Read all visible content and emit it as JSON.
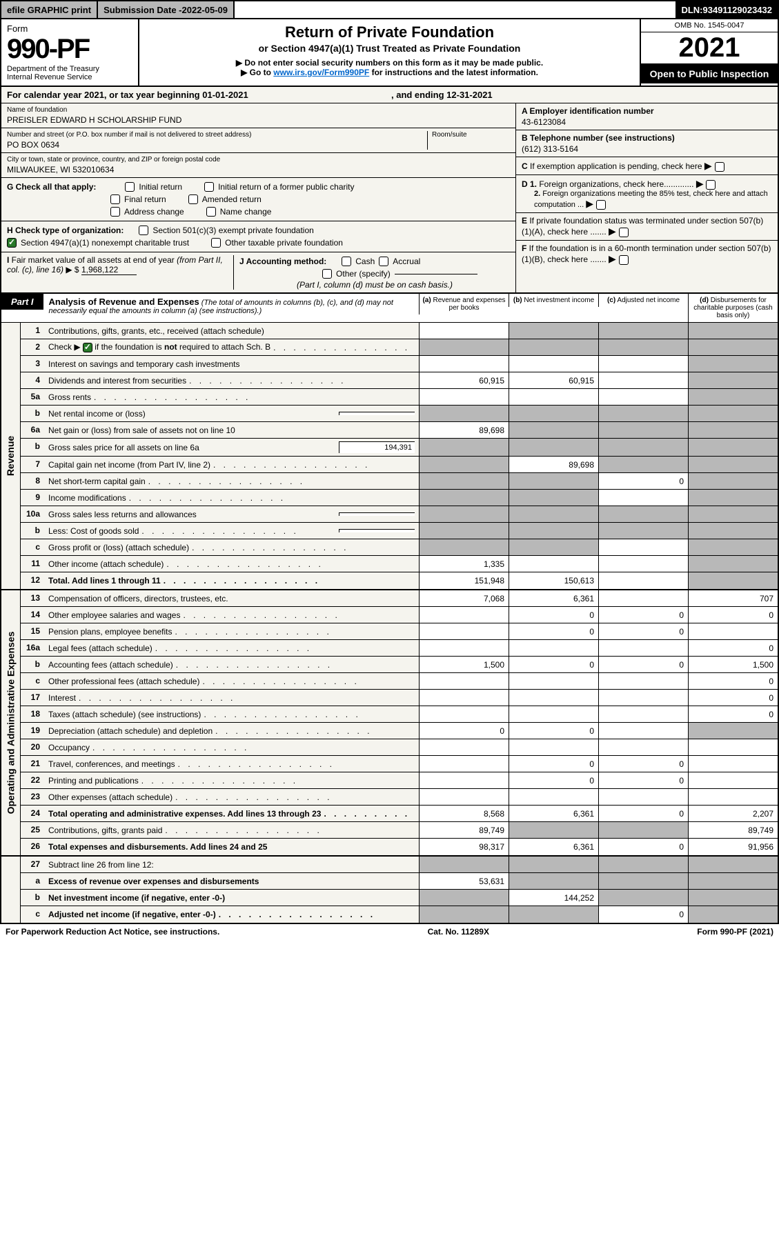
{
  "top_bar": {
    "efile": "efile GRAPHIC print",
    "submission_label": "Submission Date - ",
    "submission_date": "2022-05-09",
    "dln_label": "DLN: ",
    "dln": "93491129023432"
  },
  "header": {
    "form_word": "Form",
    "form_number": "990-PF",
    "dept": "Department of the Treasury",
    "irs": "Internal Revenue Service",
    "title": "Return of Private Foundation",
    "subtitle": "or Section 4947(a)(1) Trust Treated as Private Foundation",
    "instr1": "▶ Do not enter social security numbers on this form as it may be made public.",
    "instr2_pre": "▶ Go to ",
    "instr2_link": "www.irs.gov/Form990PF",
    "instr2_post": " for instructions and the latest information.",
    "omb": "OMB No. 1545-0047",
    "tax_year": "2021",
    "open_public": "Open to Public Inspection"
  },
  "cal_year": {
    "pre": "For calendar year 2021, or tax year beginning ",
    "begin": "01-01-2021",
    "mid": " , and ending ",
    "end": "12-31-2021"
  },
  "info_left": {
    "name_label": "Name of foundation",
    "name": "PREISLER EDWARD H SCHOLARSHIP FUND",
    "addr_label": "Number and street (or P.O. box number if mail is not delivered to street address)",
    "addr": "PO BOX 0634",
    "room_label": "Room/suite",
    "city_label": "City or town, state or province, country, and ZIP or foreign postal code",
    "city": "MILWAUKEE, WI  532010634",
    "g_label": "G Check all that apply:",
    "g_opts": [
      "Initial return",
      "Initial return of a former public charity",
      "Final return",
      "Amended return",
      "Address change",
      "Name change"
    ],
    "h_label": "H Check type of organization:",
    "h_501c3": "Section 501(c)(3) exempt private foundation",
    "h_4947": "Section 4947(a)(1) nonexempt charitable trust",
    "h_other_tax": "Other taxable private foundation",
    "i_label": "I Fair market value of all assets at end of year (from Part II, col. (c), line 16) ▶ $ ",
    "i_value": "1,968,122",
    "j_label": "J Accounting method:",
    "j_cash": "Cash",
    "j_accrual": "Accrual",
    "j_other": "Other (specify)",
    "j_note": "(Part I, column (d) must be on cash basis.)"
  },
  "info_right": {
    "a_label": "A Employer identification number",
    "a_value": "43-6123084",
    "b_label": "B Telephone number (see instructions)",
    "b_value": "(612) 313-5164",
    "c_label": "C If exemption application is pending, check here",
    "d1_label": "D 1. Foreign organizations, check here",
    "d2_label": "2. Foreign organizations meeting the 85% test, check here and attach computation ...",
    "e_label": "E If private foundation status was terminated under section 507(b)(1)(A), check here .......",
    "f_label": "F If the foundation is in a 60-month termination under section 507(b)(1)(B), check here ......."
  },
  "part1": {
    "label": "Part I",
    "title": "Analysis of Revenue and Expenses",
    "title_note": " (The total of amounts in columns (b), (c), and (d) may not necessarily equal the amounts in column (a) (see instructions).)",
    "col_a": "(a) Revenue and expenses per books",
    "col_b": "(b) Net investment income",
    "col_c": "(c) Adjusted net income",
    "col_d": "(d) Disbursements for charitable purposes (cash basis only)"
  },
  "sections": {
    "revenue_label": "Revenue",
    "expenses_label": "Operating and Administrative Expenses"
  },
  "rows": [
    {
      "n": "1",
      "desc": "Contributions, gifts, grants, etc., received (attach schedule)",
      "a": "",
      "b": "shaded",
      "c": "shaded",
      "d": "shaded"
    },
    {
      "n": "2",
      "desc": "Check ▶ ☑ if the foundation is <b>not</b> required to attach Sch. B",
      "dots": true,
      "a": "shaded",
      "b": "shaded",
      "c": "shaded",
      "d": "shaded",
      "has_check": true
    },
    {
      "n": "3",
      "desc": "Interest on savings and temporary cash investments",
      "a": "",
      "b": "",
      "c": "",
      "d": "shaded"
    },
    {
      "n": "4",
      "desc": "Dividends and interest from securities",
      "dots": true,
      "a": "60,915",
      "b": "60,915",
      "c": "",
      "d": "shaded"
    },
    {
      "n": "5a",
      "desc": "Gross rents",
      "dots": true,
      "a": "",
      "b": "",
      "c": "",
      "d": "shaded"
    },
    {
      "n": "b",
      "desc": "Net rental income or (loss)",
      "subbox": "",
      "a": "shaded",
      "b": "shaded",
      "c": "shaded",
      "d": "shaded"
    },
    {
      "n": "6a",
      "desc": "Net gain or (loss) from sale of assets not on line 10",
      "a": "89,698",
      "b": "shaded",
      "c": "shaded",
      "d": "shaded"
    },
    {
      "n": "b",
      "desc": "Gross sales price for all assets on line 6a",
      "subbox": "194,391",
      "a": "shaded",
      "b": "shaded",
      "c": "shaded",
      "d": "shaded"
    },
    {
      "n": "7",
      "desc": "Capital gain net income (from Part IV, line 2)",
      "dots": true,
      "a": "shaded",
      "b": "89,698",
      "c": "shaded",
      "d": "shaded"
    },
    {
      "n": "8",
      "desc": "Net short-term capital gain",
      "dots": true,
      "a": "shaded",
      "b": "shaded",
      "c": "0",
      "d": "shaded"
    },
    {
      "n": "9",
      "desc": "Income modifications",
      "dots": true,
      "a": "shaded",
      "b": "shaded",
      "c": "",
      "d": "shaded"
    },
    {
      "n": "10a",
      "desc": "Gross sales less returns and allowances",
      "subbox": "",
      "a": "shaded",
      "b": "shaded",
      "c": "shaded",
      "d": "shaded"
    },
    {
      "n": "b",
      "desc": "Less: Cost of goods sold",
      "dots": true,
      "subbox": "",
      "a": "shaded",
      "b": "shaded",
      "c": "shaded",
      "d": "shaded"
    },
    {
      "n": "c",
      "desc": "Gross profit or (loss) (attach schedule)",
      "dots": true,
      "a": "shaded",
      "b": "shaded",
      "c": "",
      "d": "shaded"
    },
    {
      "n": "11",
      "desc": "Other income (attach schedule)",
      "dots": true,
      "a": "1,335",
      "b": "",
      "c": "",
      "d": "shaded"
    },
    {
      "n": "12",
      "desc": "<b>Total.</b> Add lines 1 through 11",
      "dots": true,
      "a": "151,948",
      "b": "150,613",
      "c": "",
      "d": "shaded",
      "bold": true
    }
  ],
  "exp_rows": [
    {
      "n": "13",
      "desc": "Compensation of officers, directors, trustees, etc.",
      "a": "7,068",
      "b": "6,361",
      "c": "",
      "d": "707"
    },
    {
      "n": "14",
      "desc": "Other employee salaries and wages",
      "dots": true,
      "a": "",
      "b": "0",
      "c": "0",
      "d": "0"
    },
    {
      "n": "15",
      "desc": "Pension plans, employee benefits",
      "dots": true,
      "a": "",
      "b": "0",
      "c": "0",
      "d": ""
    },
    {
      "n": "16a",
      "desc": "Legal fees (attach schedule)",
      "dots": true,
      "a": "",
      "b": "",
      "c": "",
      "d": "0"
    },
    {
      "n": "b",
      "desc": "Accounting fees (attach schedule)",
      "dots": true,
      "a": "1,500",
      "b": "0",
      "c": "0",
      "d": "1,500"
    },
    {
      "n": "c",
      "desc": "Other professional fees (attach schedule)",
      "dots": true,
      "a": "",
      "b": "",
      "c": "",
      "d": "0"
    },
    {
      "n": "17",
      "desc": "Interest",
      "dots": true,
      "a": "",
      "b": "",
      "c": "",
      "d": "0"
    },
    {
      "n": "18",
      "desc": "Taxes (attach schedule) (see instructions)",
      "dots": true,
      "a": "",
      "b": "",
      "c": "",
      "d": "0"
    },
    {
      "n": "19",
      "desc": "Depreciation (attach schedule) and depletion",
      "dots": true,
      "a": "0",
      "b": "0",
      "c": "",
      "d": "shaded"
    },
    {
      "n": "20",
      "desc": "Occupancy",
      "dots": true,
      "a": "",
      "b": "",
      "c": "",
      "d": ""
    },
    {
      "n": "21",
      "desc": "Travel, conferences, and meetings",
      "dots": true,
      "a": "",
      "b": "0",
      "c": "0",
      "d": ""
    },
    {
      "n": "22",
      "desc": "Printing and publications",
      "dots": true,
      "a": "",
      "b": "0",
      "c": "0",
      "d": ""
    },
    {
      "n": "23",
      "desc": "Other expenses (attach schedule)",
      "dots": true,
      "a": "",
      "b": "",
      "c": "",
      "d": ""
    },
    {
      "n": "24",
      "desc": "<b>Total operating and administrative expenses.</b> Add lines 13 through 23",
      "dots": true,
      "a": "8,568",
      "b": "6,361",
      "c": "0",
      "d": "2,207",
      "bold": true
    },
    {
      "n": "25",
      "desc": "Contributions, gifts, grants paid",
      "dots": true,
      "a": "89,749",
      "b": "shaded",
      "c": "shaded",
      "d": "89,749"
    },
    {
      "n": "26",
      "desc": "<b>Total expenses and disbursements.</b> Add lines 24 and 25",
      "a": "98,317",
      "b": "6,361",
      "c": "0",
      "d": "91,956",
      "bold": true
    }
  ],
  "bottom_rows": [
    {
      "n": "27",
      "desc": "Subtract line 26 from line 12:",
      "a": "shaded",
      "b": "shaded",
      "c": "shaded",
      "d": "shaded"
    },
    {
      "n": "a",
      "desc": "<b>Excess of revenue over expenses and disbursements</b>",
      "a": "53,631",
      "b": "shaded",
      "c": "shaded",
      "d": "shaded",
      "bold": true
    },
    {
      "n": "b",
      "desc": "<b>Net investment income</b> (if negative, enter -0-)",
      "a": "shaded",
      "b": "144,252",
      "c": "shaded",
      "d": "shaded",
      "bold": true
    },
    {
      "n": "c",
      "desc": "<b>Adjusted net income</b> (if negative, enter -0-)",
      "dots": true,
      "a": "shaded",
      "b": "shaded",
      "c": "0",
      "d": "shaded",
      "bold": true
    }
  ],
  "footer": {
    "left": "For Paperwork Reduction Act Notice, see instructions.",
    "center": "Cat. No. 11289X",
    "right": "Form 990-PF (2021)"
  },
  "colors": {
    "bg_cream": "#f5f4ee",
    "shaded": "#b8b8b8",
    "link": "#0066cc",
    "check_green": "#2a7a2a"
  }
}
